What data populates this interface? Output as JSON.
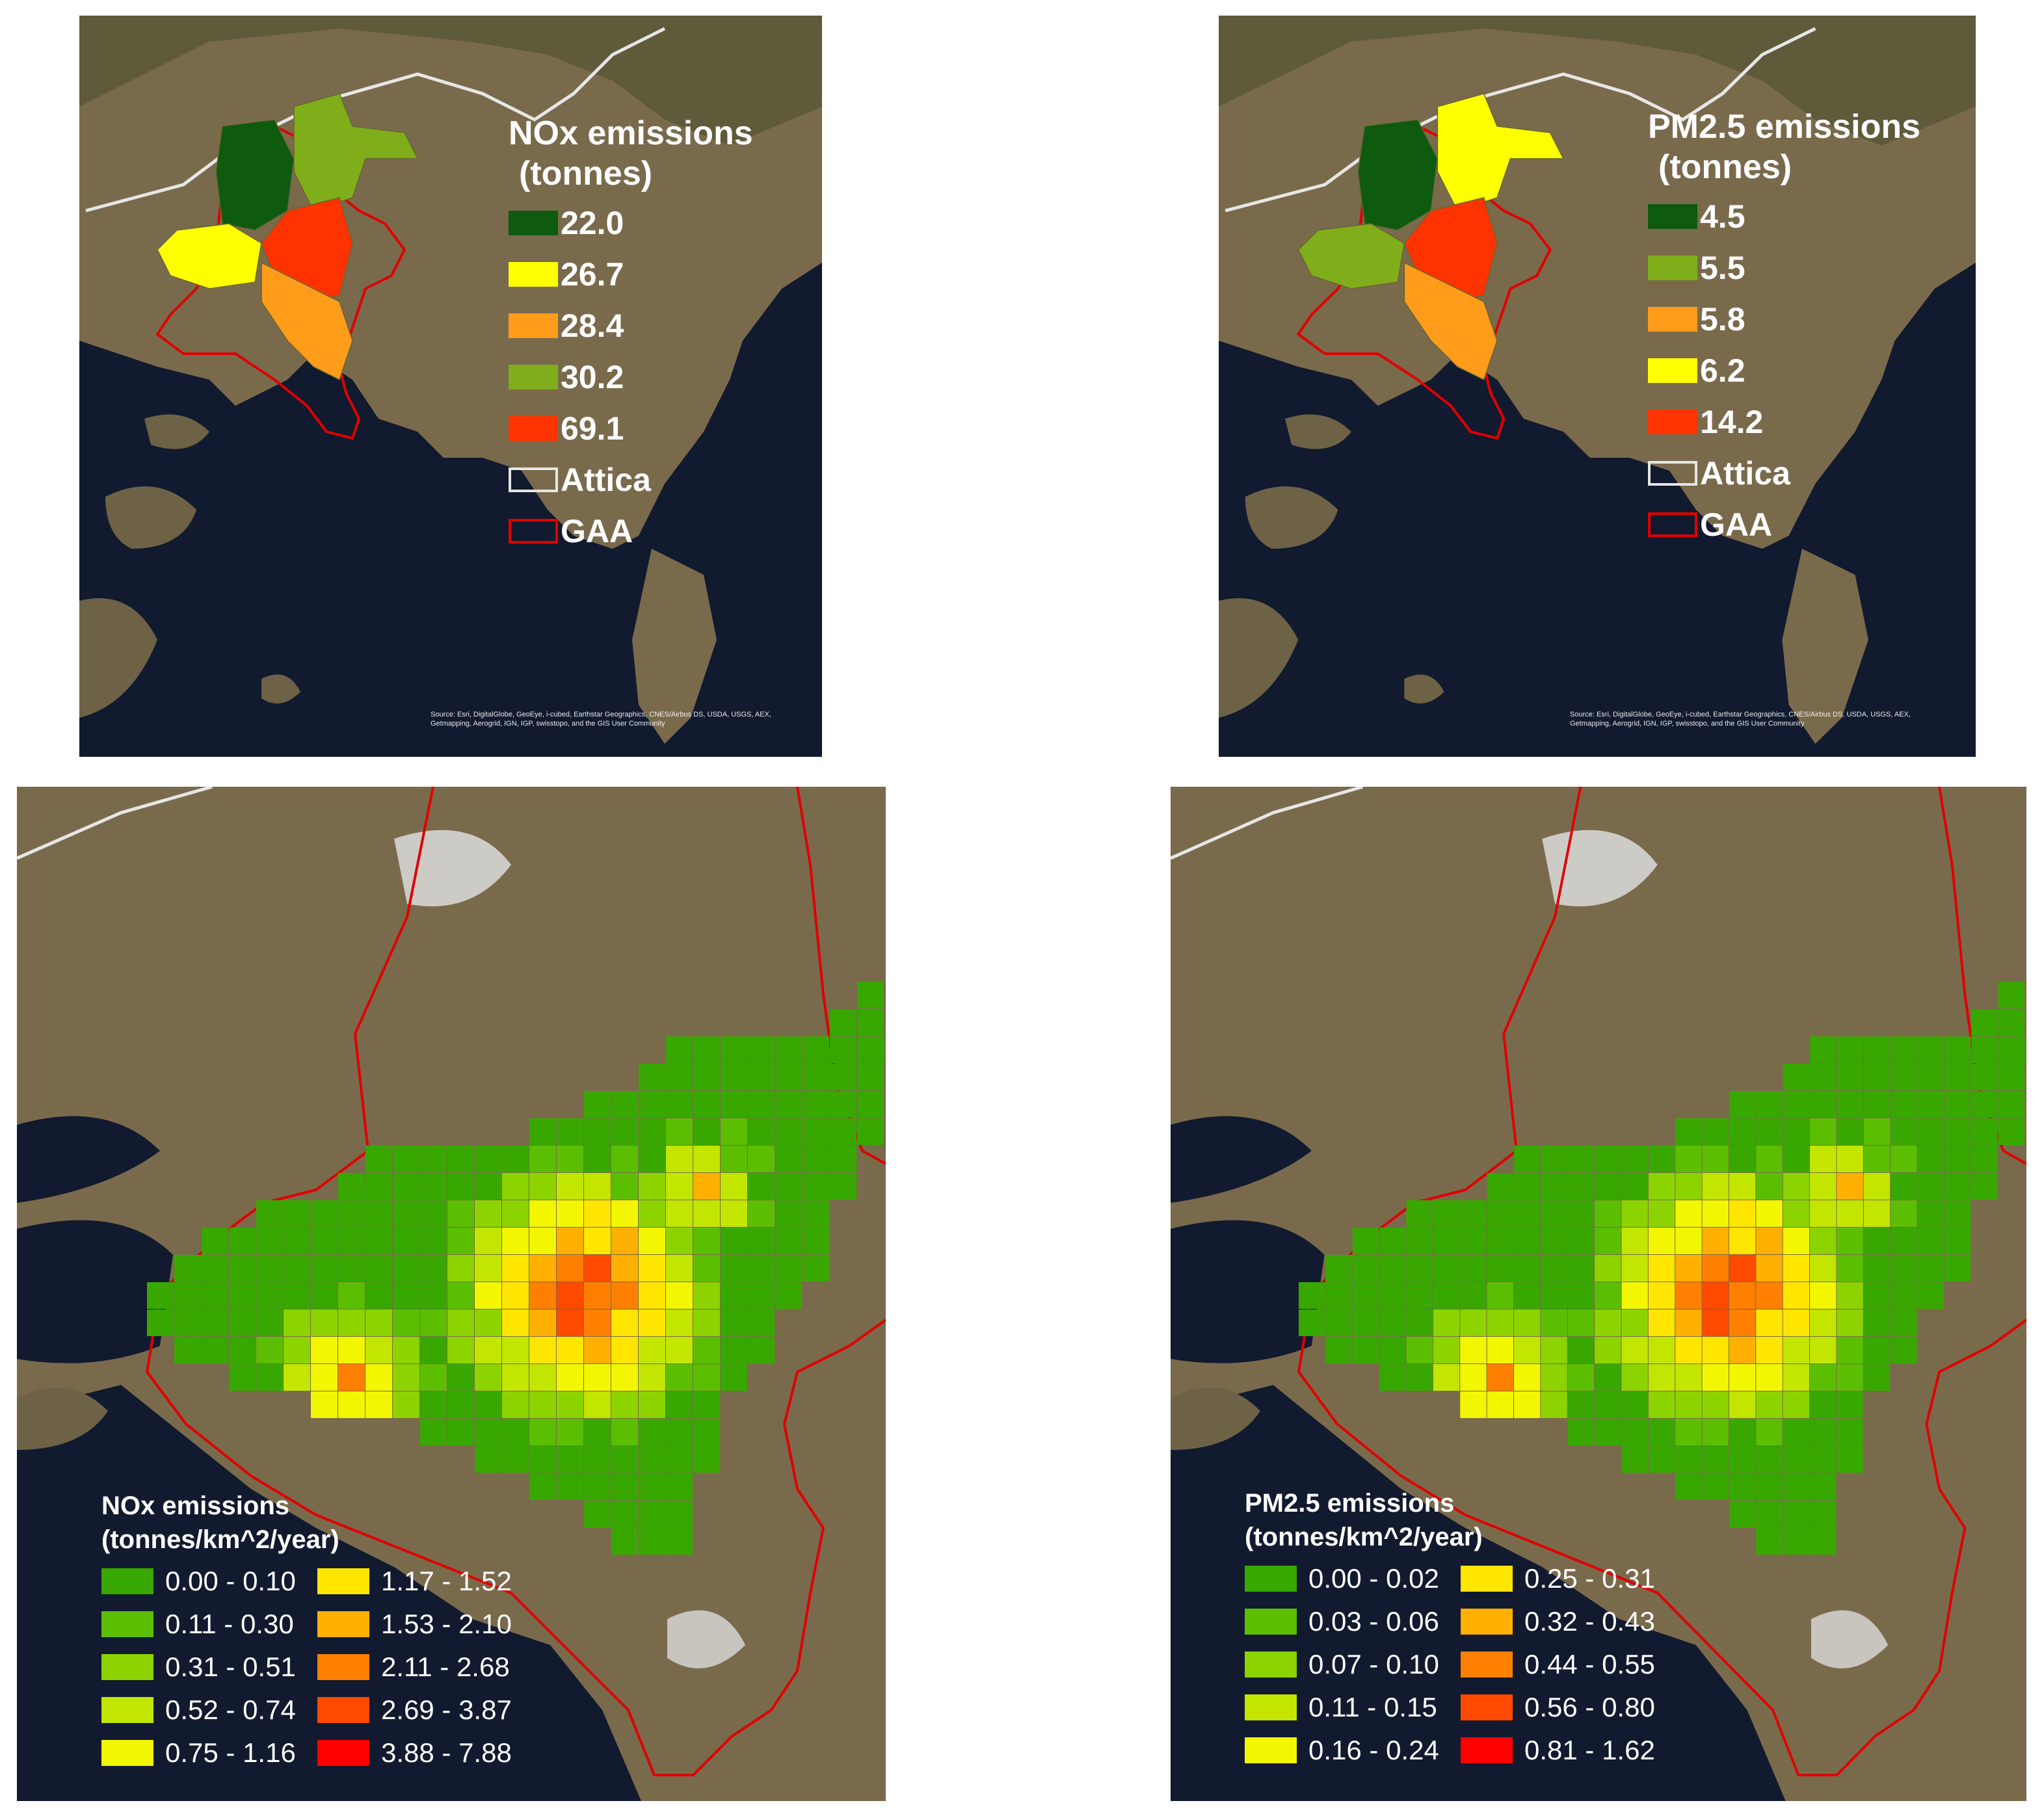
{
  "top_left": {
    "title_line1": "NOx emissions",
    "title_line2": "(tonnes)",
    "classes": [
      {
        "label": "22.0",
        "color": "#0e5a0e"
      },
      {
        "label": "26.7",
        "color": "#ffff00"
      },
      {
        "label": "28.4",
        "color": "#ff9c1a"
      },
      {
        "label": "30.2",
        "color": "#7fae1a"
      },
      {
        "label": "69.1",
        "color": "#ff3300"
      }
    ],
    "boundaries": [
      {
        "label": "Attica",
        "stroke": "#e6e6e6"
      },
      {
        "label": "GAA",
        "stroke": "#e00000"
      }
    ],
    "credit": "Source: Esri, DigitalGlobe, GeoEye, i-cubed, Earthstar Geographics, CNES/Airbus DS, USDA, USGS, AEX, Getmapping, Aerogrid, IGN, IGP, swisstopo, and the GIS User Community",
    "region_class_index": [
      0,
      1,
      3,
      4,
      2
    ]
  },
  "top_right": {
    "title_line1": "PM2.5 emissions",
    "title_line2": "(tonnes)",
    "classes": [
      {
        "label": "4.5",
        "color": "#0e5a0e"
      },
      {
        "label": "5.5",
        "color": "#7fae1a"
      },
      {
        "label": "5.8",
        "color": "#ff9c1a"
      },
      {
        "label": "6.2",
        "color": "#ffff00"
      },
      {
        "label": "14.2",
        "color": "#ff3300"
      }
    ],
    "boundaries": [
      {
        "label": "Attica",
        "stroke": "#e6e6e6"
      },
      {
        "label": "GAA",
        "stroke": "#e00000"
      }
    ],
    "credit": "Source: Esri, DigitalGlobe, GeoEye, i-cubed, Earthstar Geographics, CNES/Airbus DS, USDA, USGS, AEX, Getmapping, Aerogrid, IGN, IGP, swisstopo, and the GIS User Community",
    "region_class_index": [
      0,
      1,
      3,
      4,
      2
    ]
  },
  "bottom_left": {
    "title_line1": "NOx emissions",
    "title_line2": "(tonnes/km^2/year)",
    "classes": [
      {
        "label": "0.00 - 0.10",
        "color": "#38a800"
      },
      {
        "label": "0.11 - 0.30",
        "color": "#5cbe00"
      },
      {
        "label": "0.31 - 0.51",
        "color": "#8cd300"
      },
      {
        "label": "0.52 - 0.74",
        "color": "#c2e600"
      },
      {
        "label": "0.75 - 1.16",
        "color": "#f2f700"
      },
      {
        "label": "1.17 - 1.52",
        "color": "#ffe600"
      },
      {
        "label": "1.53 - 2.10",
        "color": "#ffb000"
      },
      {
        "label": "2.11 - 2.68",
        "color": "#ff8000"
      },
      {
        "label": "2.69 - 3.87",
        "color": "#ff4a00"
      },
      {
        "label": "3.88 - 7.88",
        "color": "#ff0000"
      }
    ]
  },
  "bottom_right": {
    "title_line1": "PM2.5 emissions",
    "title_line2": "(tonnes/km^2/year)",
    "classes": [
      {
        "label": "0.00 - 0.02",
        "color": "#38a800"
      },
      {
        "label": "0.03 - 0.06",
        "color": "#5cbe00"
      },
      {
        "label": "0.07 - 0.10",
        "color": "#8cd300"
      },
      {
        "label": "0.11 - 0.15",
        "color": "#c2e600"
      },
      {
        "label": "0.16 - 0.24",
        "color": "#f2f700"
      },
      {
        "label": "0.25 - 0.31",
        "color": "#ffe600"
      },
      {
        "label": "0.32 - 0.43",
        "color": "#ffb000"
      },
      {
        "label": "0.44 - 0.55",
        "color": "#ff8000"
      },
      {
        "label": "0.56 - 0.80",
        "color": "#ff4a00"
      },
      {
        "label": "0.81 - 1.62",
        "color": "#ff0000"
      }
    ]
  },
  "colors": {
    "sea": "#111a2e",
    "land": "#7a6a4c",
    "gaa_boundary": "#e00000",
    "attica_boundary": "#e6e6e6"
  }
}
